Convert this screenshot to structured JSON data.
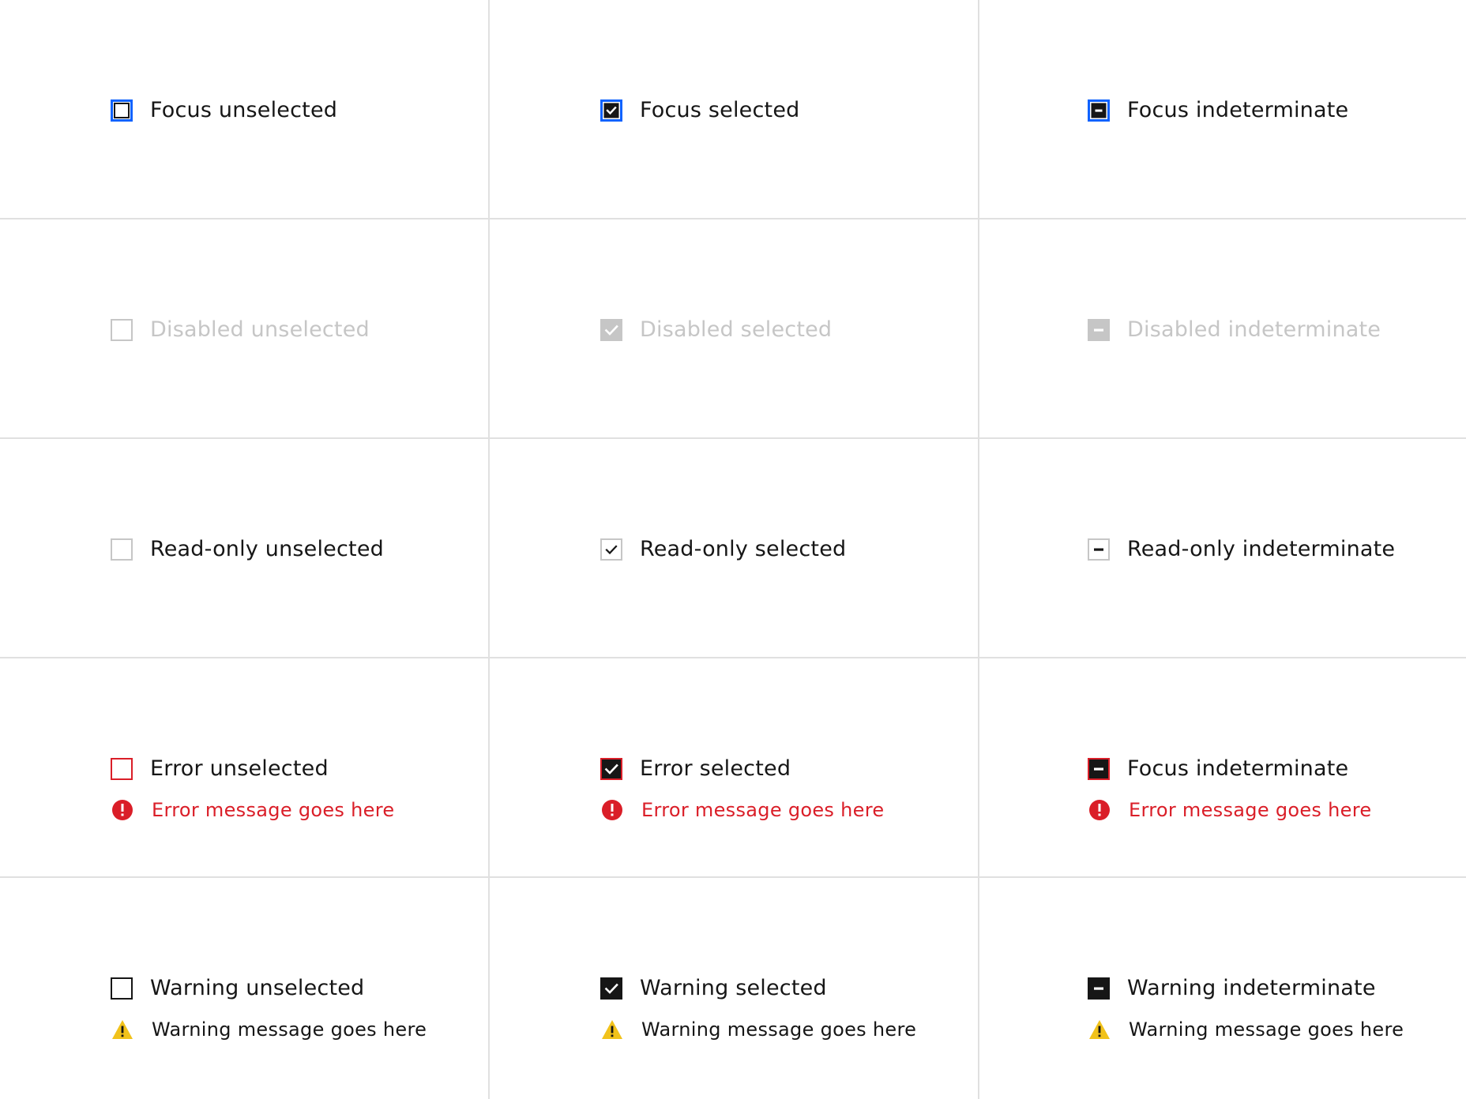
{
  "colors": {
    "focus": "#0f62fe",
    "text": "#161616",
    "disabled": "#c6c6c6",
    "error": "#da1e28",
    "warning": "#f1c21b",
    "divider": "#e0e0e0"
  },
  "cells": [
    {
      "label": "Focus unselected",
      "state": "unselected",
      "variant": "focus"
    },
    {
      "label": "Focus selected",
      "state": "selected",
      "variant": "focus"
    },
    {
      "label": "Focus indeterminate",
      "state": "indeterminate",
      "variant": "focus"
    },
    {
      "label": "Disabled unselected",
      "state": "unselected",
      "variant": "disabled"
    },
    {
      "label": "Disabled selected",
      "state": "selected",
      "variant": "disabled"
    },
    {
      "label": "Disabled indeterminate",
      "state": "indeterminate",
      "variant": "disabled"
    },
    {
      "label": "Read-only unselected",
      "state": "unselected",
      "variant": "readonly"
    },
    {
      "label": "Read-only selected",
      "state": "selected",
      "variant": "readonly"
    },
    {
      "label": "Read-only indeterminate",
      "state": "indeterminate",
      "variant": "readonly"
    },
    {
      "label": "Error unselected",
      "state": "unselected",
      "variant": "error",
      "message": "Error message goes here",
      "message_icon": "error-icon"
    },
    {
      "label": "Error selected",
      "state": "selected",
      "variant": "error",
      "message": "Error message goes here",
      "message_icon": "error-icon"
    },
    {
      "label": "Focus indeterminate",
      "state": "indeterminate",
      "variant": "error",
      "message": "Error message goes here",
      "message_icon": "error-icon"
    },
    {
      "label": "Warning unselected",
      "state": "unselected",
      "variant": "warning",
      "message": "Warning message goes here",
      "message_icon": "warning-icon"
    },
    {
      "label": "Warning selected",
      "state": "selected",
      "variant": "warning",
      "message": "Warning message goes here",
      "message_icon": "warning-icon"
    },
    {
      "label": "Warning indeterminate",
      "state": "indeterminate",
      "variant": "warning",
      "message": "Warning message goes here",
      "message_icon": "warning-icon"
    }
  ]
}
